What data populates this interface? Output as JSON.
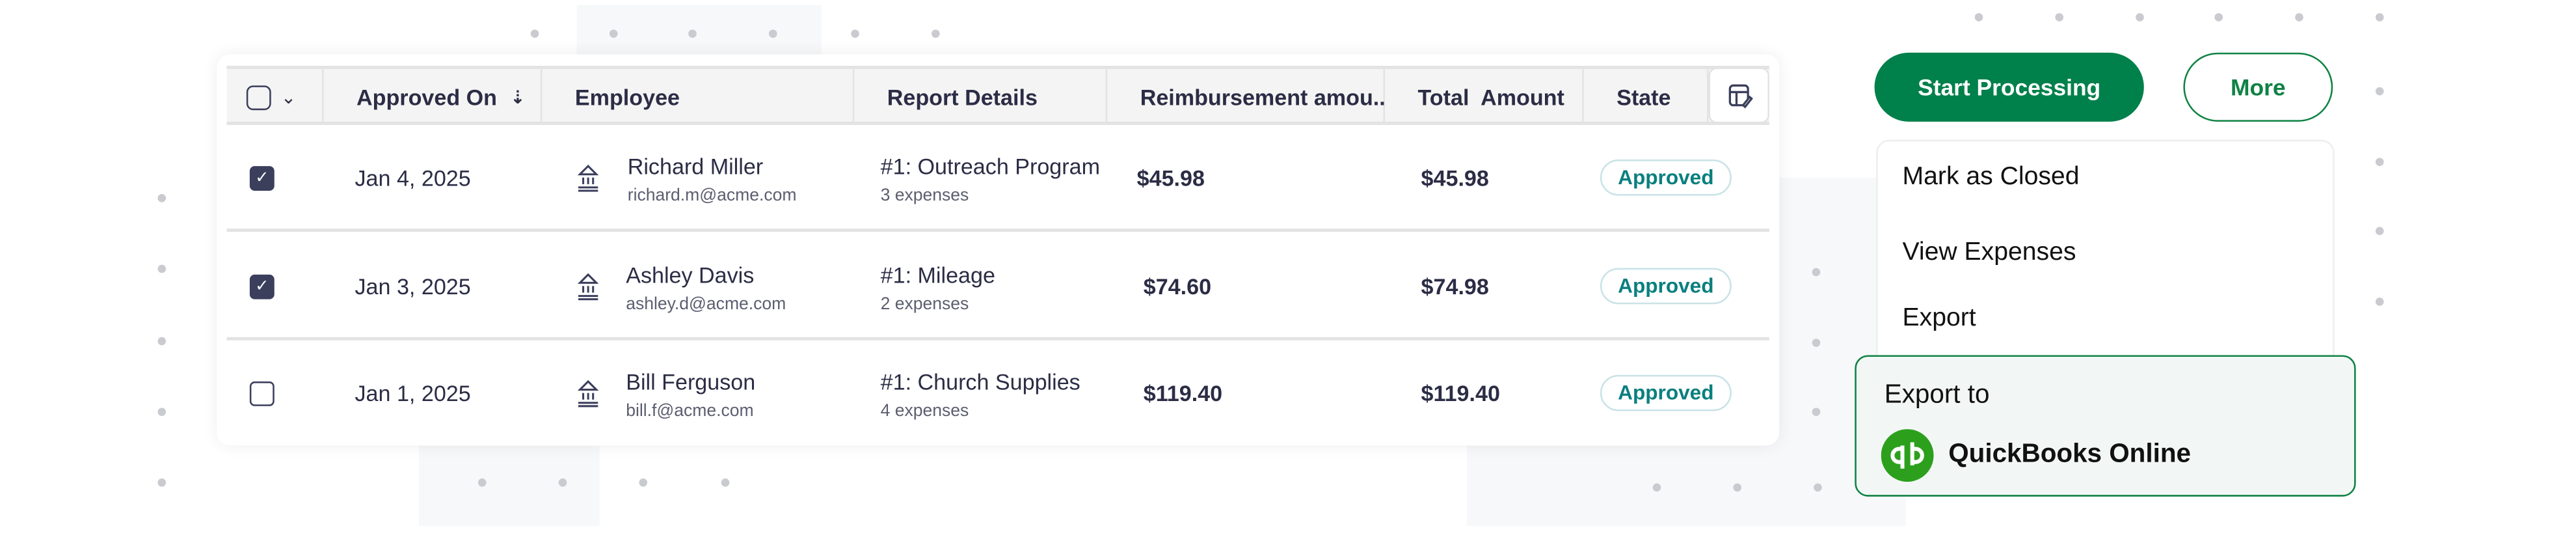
{
  "table": {
    "headers": {
      "approved_on": "Approved On",
      "employee": "Employee",
      "report_details": "Report Details",
      "reimbursement": "Reimbursement amou..",
      "total": "Total  Amount",
      "state": "State"
    },
    "rows": [
      {
        "checked": true,
        "date": "Jan 4, 2025",
        "name": "Richard Miller",
        "email": "richard.m@acme.com",
        "report": "#1: Outreach Program",
        "expenses": "3 expenses",
        "reimbursement": "$45.98",
        "total": "$45.98",
        "state": "Approved"
      },
      {
        "checked": true,
        "date": "Jan 3, 2025",
        "name": "Ashley Davis",
        "email": "ashley.d@acme.com",
        "report": "#1: Mileage",
        "expenses": "2 expenses",
        "reimbursement": "$74.60",
        "total": "$74.98",
        "state": "Approved"
      },
      {
        "checked": false,
        "date": "Jan 1, 2025",
        "name": "Bill Ferguson",
        "email": "bill.f@acme.com",
        "report": "#1: Church Supplies",
        "expenses": "4 expenses",
        "reimbursement": "$119.40",
        "total": "$119.40",
        "state": "Approved"
      }
    ]
  },
  "actions": {
    "start_processing": "Start Processing",
    "more": "More"
  },
  "menu": {
    "items": [
      "Mark as Closed",
      "View Expenses",
      "Export"
    ],
    "export_to": "Export to",
    "quickbooks": "QuickBooks Online"
  },
  "colors": {
    "brand_green": "#00804a",
    "approved_teal": "#0a7f7f",
    "text": "#2b2d45",
    "quickbooks_green": "#2ca01c"
  }
}
